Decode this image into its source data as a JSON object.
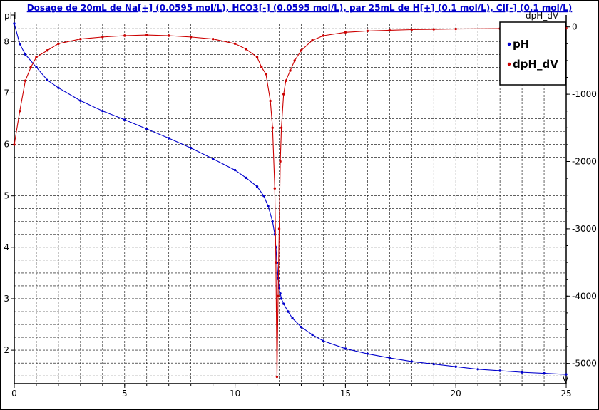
{
  "chart_data": {
    "type": "line",
    "title": "Dosage de 20mL de Na[+] (0.0595 mol/L), HCO3[-] (0.0595 mol/L),  par 25mL  de H[+] (0.1 mol/L), Cl[-] (0.1 mol/L)",
    "xlabel": "V",
    "ylabel_left": "pH",
    "ylabel_right": "dpH_dV",
    "xlim": [
      0,
      25
    ],
    "ylim_left": [
      1.35,
      8.35
    ],
    "ylim_right": [
      -5300,
      50
    ],
    "x_ticks": [
      0,
      5,
      10,
      15,
      20,
      25
    ],
    "y_left_ticks": [
      2,
      3,
      4,
      5,
      6,
      7,
      8
    ],
    "y_right_ticks": [
      0,
      -1000,
      -2000,
      -3000,
      -4000,
      -5000
    ],
    "grid": true,
    "legend_placement": "top-right",
    "legend": [
      {
        "name": "pH",
        "color": "#0000cc"
      },
      {
        "name": "dpH_dV",
        "color": "#cc0000"
      }
    ],
    "series": [
      {
        "name": "pH",
        "axis": "left",
        "color": "#0000cc",
        "x": [
          0,
          0.25,
          0.5,
          1,
          1.5,
          2,
          3,
          4,
          5,
          6,
          7,
          8,
          9,
          10,
          10.5,
          11,
          11.3,
          11.5,
          11.7,
          11.8,
          11.85,
          11.9,
          11.95,
          12.0,
          12.05,
          12.1,
          12.2,
          12.4,
          12.6,
          13,
          13.5,
          14,
          15,
          16,
          17,
          18,
          19,
          20,
          21,
          22,
          23,
          24,
          25
        ],
        "y": [
          8.35,
          7.95,
          7.75,
          7.5,
          7.25,
          7.1,
          6.85,
          6.65,
          6.48,
          6.3,
          6.12,
          5.93,
          5.72,
          5.5,
          5.35,
          5.18,
          5.0,
          4.8,
          4.5,
          4.25,
          4.0,
          3.7,
          3.4,
          3.2,
          3.1,
          3.0,
          2.9,
          2.75,
          2.62,
          2.45,
          2.3,
          2.18,
          2.03,
          1.93,
          1.85,
          1.78,
          1.73,
          1.68,
          1.63,
          1.6,
          1.57,
          1.55,
          1.53
        ]
      },
      {
        "name": "dpH_dV",
        "axis": "right",
        "color": "#cc0000",
        "x": [
          0,
          0.25,
          0.5,
          0.75,
          1,
          1.5,
          2,
          3,
          4,
          5,
          6,
          7,
          8,
          9,
          10,
          10.5,
          11,
          11.2,
          11.4,
          11.6,
          11.7,
          11.8,
          11.85,
          11.9,
          11.95,
          12.0,
          12.05,
          12.1,
          12.2,
          12.3,
          12.5,
          12.7,
          13,
          13.5,
          14,
          15,
          16,
          17,
          18,
          19,
          20,
          22,
          25
        ],
        "y": [
          -1750,
          -1250,
          -800,
          -600,
          -450,
          -350,
          -250,
          -180,
          -150,
          -130,
          -120,
          -130,
          -150,
          -180,
          -250,
          -330,
          -450,
          -600,
          -700,
          -1100,
          -1500,
          -2400,
          -3500,
          -5200,
          -4000,
          -3000,
          -2000,
          -1500,
          -1000,
          -800,
          -650,
          -500,
          -350,
          -200,
          -130,
          -80,
          -60,
          -50,
          -40,
          -35,
          -30,
          -25,
          -20
        ]
      }
    ]
  }
}
